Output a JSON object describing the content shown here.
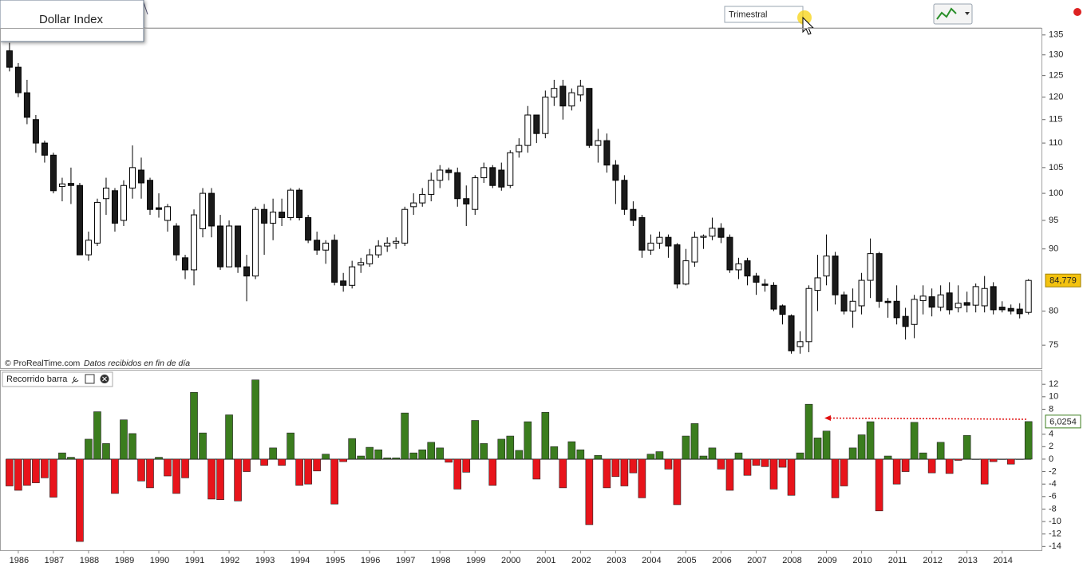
{
  "window_title": "Dollar Index",
  "timeframe": "Trimestral",
  "source": "© ProRealTime.com",
  "source_note": "Datos recibidos en fin de día",
  "chart_data": [
    {
      "type": "candlestick",
      "yscale": "log",
      "ylim": [
        71.8,
        136.6
      ],
      "yticks": [
        75,
        80,
        90,
        95,
        100,
        105,
        110,
        115,
        120,
        125,
        130,
        135
      ],
      "xlim": [
        1985.48,
        2015.12
      ],
      "xticks": [
        1986,
        1987,
        1988,
        1989,
        1990,
        1991,
        1992,
        1993,
        1994,
        1995,
        1996,
        1997,
        1998,
        1999,
        2000,
        2001,
        2002,
        2003,
        2004,
        2005,
        2006,
        2007,
        2008,
        2009,
        2010,
        2011,
        2012,
        2013,
        2014
      ],
      "up_color": "#ffffff",
      "down_color": "#1a1a1a",
      "edge_color": "#000000",
      "label_color": "#f3c20f",
      "x": [
        1985.75,
        1986,
        1986.25,
        1986.5,
        1986.75,
        1987,
        1987.25,
        1987.5,
        1987.75,
        1988,
        1988.25,
        1988.5,
        1988.75,
        1989,
        1989.25,
        1989.5,
        1989.75,
        1990,
        1990.25,
        1990.5,
        1990.75,
        1991,
        1991.25,
        1991.5,
        1991.75,
        1992,
        1992.25,
        1992.5,
        1992.75,
        1993,
        1993.25,
        1993.5,
        1993.75,
        1994,
        1994.25,
        1994.5,
        1994.75,
        1995,
        1995.25,
        1995.5,
        1995.75,
        1996,
        1996.25,
        1996.5,
        1996.75,
        1997,
        1997.25,
        1997.5,
        1997.75,
        1998,
        1998.25,
        1998.5,
        1998.75,
        1999,
        1999.25,
        1999.5,
        1999.75,
        2000,
        2000.25,
        2000.5,
        2000.75,
        2001,
        2001.25,
        2001.5,
        2001.75,
        2002,
        2002.25,
        2002.5,
        2002.75,
        2003,
        2003.25,
        2003.5,
        2003.75,
        2004,
        2004.25,
        2004.5,
        2004.75,
        2005,
        2005.25,
        2005.5,
        2005.75,
        2006,
        2006.25,
        2006.5,
        2006.75,
        2007,
        2007.25,
        2007.5,
        2007.75,
        2008,
        2008.25,
        2008.5,
        2008.75,
        2009,
        2009.25,
        2009.5,
        2009.75,
        2010,
        2010.25,
        2010.5,
        2010.75,
        2011,
        2011.25,
        2011.5,
        2011.75,
        2012,
        2012.25,
        2012.5,
        2012.75,
        2013,
        2013.25,
        2013.5,
        2013.75,
        2014,
        2014.25,
        2014.5,
        2014.75
      ],
      "open": [
        131,
        127,
        121,
        115,
        110,
        107.5,
        101.3,
        101.9,
        101.5,
        89,
        91,
        99,
        100.5,
        95,
        101,
        104.5,
        102.5,
        97.3,
        95,
        94,
        88.5,
        86.5,
        93.5,
        100,
        94,
        87,
        94,
        87,
        85.5,
        97,
        94.5,
        96.5,
        95.5,
        100.6,
        95.5,
        91.5,
        89.8,
        91.5,
        84.7,
        84,
        87.3,
        87.5,
        89,
        90.5,
        91,
        91,
        97.5,
        98.2,
        99.8,
        102.5,
        104.5,
        104,
        99,
        97,
        103,
        105,
        104.5,
        101.5,
        108.2,
        109.5,
        116,
        112,
        120,
        122.5,
        118,
        120.5,
        122,
        109.5,
        110.5,
        105.5,
        102.5,
        97,
        95.5,
        89.8,
        91,
        92,
        90.7,
        84.2,
        87.8,
        92,
        92.2,
        93.6,
        92,
        86.5,
        88,
        85.5,
        84.2,
        84,
        80.8,
        79.3,
        74.8,
        75.5,
        83.2,
        85.5,
        88.8,
        82.5,
        80,
        80.8,
        84.8,
        89.2,
        81.5,
        81.5,
        79.2,
        78,
        81.6,
        82.2,
        80.6,
        82.8,
        80.5,
        81.3,
        80.9,
        80.8,
        83.8,
        80.6,
        80.4,
        80.3,
        79.8
      ],
      "high": [
        133,
        128,
        124,
        116,
        110.5,
        108,
        103,
        105,
        102,
        93,
        99,
        103,
        101,
        102.5,
        109.5,
        107,
        103,
        100,
        98,
        94.5,
        89,
        97,
        101,
        101,
        96,
        95,
        94,
        89,
        97.5,
        98,
        99,
        99,
        101,
        101,
        96,
        93,
        91.5,
        92.5,
        86,
        88,
        88.5,
        90,
        91.5,
        92,
        92,
        97.5,
        100,
        101,
        104,
        105.5,
        105,
        105,
        101.5,
        103.5,
        106,
        105.5,
        106,
        108.5,
        111,
        118,
        116,
        121.5,
        124,
        124,
        122,
        124,
        122,
        113,
        112,
        106.5,
        103.5,
        98.5,
        96,
        92.5,
        93,
        92.5,
        91,
        90,
        93,
        92.5,
        95.5,
        94.5,
        92.5,
        88.5,
        88.5,
        86,
        85,
        84.5,
        81,
        79.5,
        77,
        84,
        89,
        92.5,
        89.5,
        83,
        83.5,
        86,
        91.8,
        89.5,
        82,
        84,
        80.5,
        82.5,
        84,
        83.5,
        84,
        84.5,
        84,
        83,
        84.3,
        85.5,
        84.5,
        81.5,
        81,
        81.2,
        85
      ],
      "low": [
        126,
        120,
        114,
        108,
        106,
        100,
        98.5,
        98,
        89,
        88,
        90.5,
        96,
        93,
        94,
        99,
        99,
        96,
        95.5,
        93,
        88,
        85,
        84,
        92,
        92,
        86.5,
        87,
        86,
        81.5,
        85,
        89,
        91.5,
        94,
        95,
        95,
        91,
        89,
        87.5,
        84,
        83,
        83.5,
        86,
        87,
        88.5,
        89.5,
        90,
        90.5,
        96,
        97.5,
        98.5,
        101,
        102.5,
        97.5,
        94,
        96,
        102,
        101,
        100.5,
        101,
        107,
        108,
        110,
        111,
        118,
        115,
        117,
        119,
        109,
        106,
        104,
        98,
        96,
        94,
        88.5,
        89,
        90,
        88.5,
        83.5,
        84,
        87,
        90,
        91.5,
        91,
        86,
        85,
        84,
        82.5,
        83,
        80,
        78,
        73.8,
        73.8,
        74,
        80,
        84,
        81,
        79.5,
        77.5,
        79.5,
        82,
        80.5,
        79,
        78,
        75.8,
        76,
        79.5,
        79.2,
        80,
        79.5,
        79.8,
        79.8,
        79.8,
        79.8,
        79.5,
        79.8,
        79.5,
        78.9,
        79.5
      ],
      "close": [
        127,
        121,
        115.5,
        110,
        107.5,
        100.5,
        101.8,
        101.5,
        89,
        91.5,
        98.3,
        101,
        94.5,
        101.5,
        105,
        102,
        97,
        97,
        97.5,
        89,
        86.5,
        96,
        100,
        94,
        87,
        94,
        87,
        85.5,
        97,
        94.5,
        96.5,
        95.5,
        100.6,
        95.5,
        91.5,
        89.8,
        91,
        84.5,
        84,
        87,
        87.7,
        89,
        90.5,
        91,
        91.3,
        97,
        98.2,
        99.8,
        102.5,
        104.5,
        104,
        99,
        98,
        103,
        105,
        101.5,
        101.2,
        108,
        109.5,
        116,
        112,
        120,
        122,
        118,
        121,
        122.5,
        109.5,
        110.5,
        105.5,
        102.5,
        97,
        95,
        89.8,
        91,
        92,
        90.5,
        84.2,
        88,
        92,
        92.2,
        93.6,
        92,
        86.5,
        87.5,
        85.5,
        84.5,
        84,
        80.3,
        79.5,
        74.2,
        75.5,
        83.5,
        85.2,
        88.8,
        82.5,
        80,
        81.5,
        84.8,
        89.2,
        81.5,
        81.3,
        79,
        77.7,
        81.8,
        82.3,
        80.6,
        82.5,
        80.2,
        81.2,
        80.9,
        83.8,
        83.5,
        80.2,
        80.2,
        80,
        79.6,
        84.779
      ],
      "close_labels": [
        null,
        null,
        null,
        null,
        null,
        null,
        null,
        null,
        null,
        null,
        null,
        null,
        null,
        null,
        null,
        null,
        null,
        null,
        null,
        null,
        null,
        null,
        null,
        null,
        null,
        null,
        null,
        null,
        null,
        null,
        null,
        null,
        null,
        null,
        null,
        null,
        null,
        null,
        null,
        null,
        null,
        null,
        null,
        null,
        null,
        null,
        null,
        null,
        null,
        null,
        null,
        null,
        null,
        null,
        null,
        null,
        null,
        null,
        null,
        null,
        null,
        null,
        null,
        null,
        null,
        null,
        null,
        null,
        null,
        null,
        null,
        null,
        null,
        null,
        null,
        null,
        null,
        null,
        null,
        null,
        null,
        null,
        null,
        null,
        null,
        null,
        null,
        null,
        null,
        null,
        null,
        null,
        null,
        null,
        null,
        null,
        null,
        null,
        null,
        null,
        null,
        null,
        null,
        null,
        null,
        null,
        null,
        null,
        null,
        null,
        null,
        null,
        null,
        null,
        null,
        null,
        "84,779"
      ]
    },
    {
      "type": "bar",
      "title": "Recorrido barra",
      "ylim": [
        -14.6,
        14.2
      ],
      "yticks": [
        12,
        10,
        8,
        4,
        2,
        0,
        -2,
        -4,
        -6,
        -8,
        -10,
        -12,
        -14
      ],
      "up_color": "#3b7d1e",
      "down_color": "#e8141b",
      "label_color": "#3b7d1e",
      "values": [
        -4.3,
        -5,
        -4.2,
        -3.8,
        -3,
        -6.1,
        1,
        0.3,
        -13.2,
        3.2,
        7.6,
        2.5,
        -5.5,
        6.3,
        4.1,
        -3.5,
        -4.6,
        0.3,
        -2.7,
        -5.5,
        -3,
        10.7,
        4.2,
        -6.4,
        -6.5,
        7.1,
        -6.7,
        -2,
        12.7,
        -1,
        1.8,
        -1,
        4.2,
        -4.2,
        -4,
        -1.9,
        0.8,
        -7.2,
        -0.4,
        3.3,
        0.5,
        1.9,
        1.5,
        0.2,
        0.2,
        7.4,
        1,
        1.5,
        2.7,
        1.8,
        -0.5,
        -4.8,
        -2.1,
        6.2,
        2.5,
        -4.2,
        3.2,
        3.7,
        1.4,
        6,
        -3.2,
        7.5,
        2,
        -4.6,
        2.8,
        1.5,
        -10.5,
        0.6,
        -4.6,
        -2.8,
        -4.3,
        -2.2,
        -6.2,
        0.8,
        1.2,
        -1.6,
        -7.3,
        3.7,
        5.7,
        0.5,
        1.8,
        -1.6,
        -5,
        1,
        -2.6,
        -1,
        -1.2,
        -4.8,
        -1.3,
        -5.8,
        1,
        8.8,
        3.4,
        4.5,
        -6.2,
        -4.3,
        1.8,
        3.9,
        6,
        -8.3,
        0.5,
        -4,
        -2,
        5.9,
        1,
        -2.2,
        2.7,
        -2.3,
        -0.2,
        3.8,
        0,
        -4,
        -0.4,
        0,
        -0.8,
        0,
        6.0254
      ],
      "value_labels": [
        null,
        null,
        null,
        null,
        null,
        null,
        null,
        null,
        null,
        null,
        null,
        null,
        null,
        null,
        null,
        null,
        null,
        null,
        null,
        null,
        null,
        null,
        null,
        null,
        null,
        null,
        null,
        null,
        null,
        null,
        null,
        null,
        null,
        null,
        null,
        null,
        null,
        null,
        null,
        null,
        null,
        null,
        null,
        null,
        null,
        null,
        null,
        null,
        null,
        null,
        null,
        null,
        null,
        null,
        null,
        null,
        null,
        null,
        null,
        null,
        null,
        null,
        null,
        null,
        null,
        null,
        null,
        null,
        null,
        null,
        null,
        null,
        null,
        null,
        null,
        null,
        null,
        null,
        null,
        null,
        null,
        null,
        null,
        null,
        null,
        null,
        null,
        null,
        null,
        null,
        null,
        null,
        null,
        null,
        null,
        null,
        null,
        null,
        null,
        null,
        null,
        null,
        null,
        null,
        null,
        null,
        null,
        null,
        null,
        null,
        null,
        null,
        null,
        null,
        null,
        null,
        "6,0254"
      ]
    }
  ]
}
